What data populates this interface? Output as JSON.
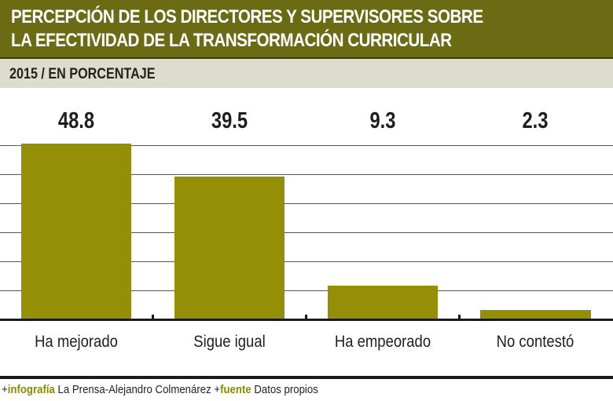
{
  "header": {
    "title_line1": "PERCEPCIÓN DE LOS DIRECTORES Y SUPERVISORES SOBRE",
    "title_line2": "LA EFECTIVIDAD DE LA TRANSFORMACIÓN CURRICULAR",
    "subtitle": "2015 / EN PORCENTAJE"
  },
  "colors": {
    "title_band": "#6b6b14",
    "subtitle_band": "#dcdccf",
    "bar": "#958f08",
    "footer_highlight": "#8b8b00"
  },
  "chart_data": {
    "type": "bar",
    "title": "PERCEPCIÓN DE LOS DIRECTORES Y SUPERVISORES SOBRE LA EFECTIVIDAD DE LA TRANSFORMACIÓN CURRICULAR",
    "subtitle": "2015 / EN PORCENTAJE",
    "categories": [
      "Ha mejorado",
      "Sigue igual",
      "Ha empeorado",
      "No contestó"
    ],
    "values": [
      48.8,
      39.5,
      9.3,
      2.3
    ],
    "value_labels": [
      "48.8",
      "39.5",
      "9.3",
      "2.3"
    ],
    "xlabel": "",
    "ylabel": "Porcentaje",
    "ylim": [
      0,
      50
    ],
    "grid": true,
    "legend": "none"
  },
  "footer": {
    "prefix1": "+",
    "label1": "infografía",
    "text1": " La Prensa-Alejandro Colmenárez ",
    "prefix2": "+",
    "label2": "fuente",
    "text2": " Datos propios"
  }
}
